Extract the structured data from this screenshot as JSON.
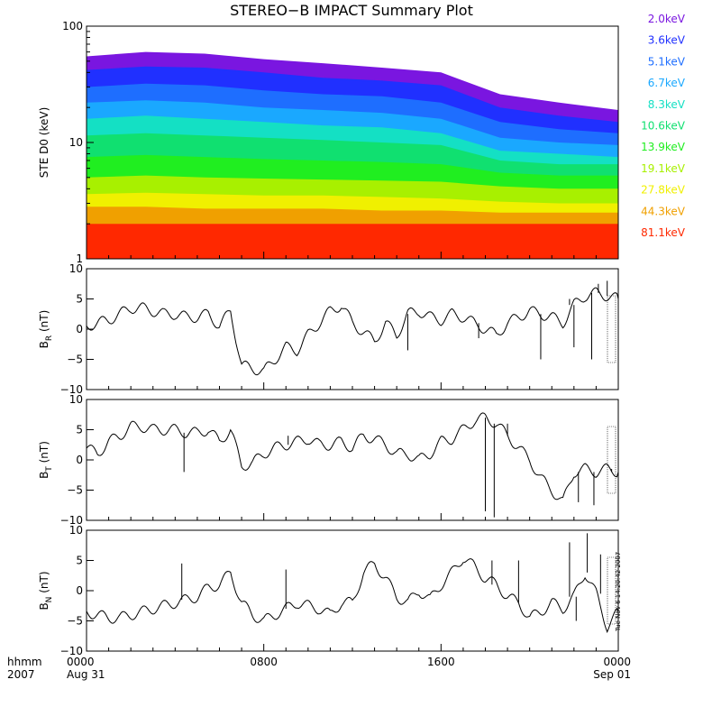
{
  "title": "STEREO−B IMPACT Summary Plot",
  "chart_data": [
    {
      "type": "area",
      "ylabel": "STE D0 (keV)",
      "yscale": "log",
      "ylim": [
        1,
        100
      ],
      "yticks": [
        "1",
        "10",
        "100"
      ],
      "x": [
        "0000",
        "0300",
        "0600",
        "0900",
        "1200",
        "1500",
        "1800",
        "1900",
        "2100",
        "2400"
      ],
      "series": [
        {
          "name": "2.0keV",
          "color": "#7a16e0",
          "values": [
            55,
            60,
            58,
            52,
            48,
            44,
            40,
            26,
            22,
            19
          ]
        },
        {
          "name": "3.6keV",
          "color": "#2030ff",
          "values": [
            42,
            45,
            44,
            40,
            36,
            34,
            31,
            20,
            17,
            15
          ]
        },
        {
          "name": "5.1keV",
          "color": "#1e6eff",
          "values": [
            30,
            32,
            31,
            28,
            26,
            25,
            22,
            15,
            13,
            12
          ]
        },
        {
          "name": "6.7keV",
          "color": "#1aa8ff",
          "values": [
            22,
            23,
            22,
            20,
            19,
            18,
            16,
            11,
            10,
            9.5
          ]
        },
        {
          "name": "8.3keV",
          "color": "#14e0c4",
          "values": [
            16,
            17,
            16,
            15,
            14,
            13.5,
            12,
            8.5,
            8,
            7.5
          ]
        },
        {
          "name": "10.6keV",
          "color": "#10e070",
          "values": [
            11.5,
            12,
            11.5,
            11,
            10.5,
            10,
            9.5,
            7,
            6.5,
            6.5
          ]
        },
        {
          "name": "13.9keV",
          "color": "#20ee20",
          "values": [
            7.5,
            7.8,
            7.5,
            7.2,
            7,
            6.8,
            6.5,
            5.5,
            5.2,
            5.2
          ]
        },
        {
          "name": "19.1keV",
          "color": "#a8f000",
          "values": [
            5,
            5.2,
            5,
            4.9,
            4.8,
            4.7,
            4.6,
            4.2,
            4,
            4
          ]
        },
        {
          "name": "27.8keV",
          "color": "#f0f000",
          "values": [
            3.6,
            3.7,
            3.6,
            3.5,
            3.5,
            3.4,
            3.3,
            3.1,
            3,
            3
          ]
        },
        {
          "name": "44.3keV",
          "color": "#f0a000",
          "values": [
            2.8,
            2.8,
            2.7,
            2.7,
            2.7,
            2.6,
            2.6,
            2.5,
            2.5,
            2.5
          ]
        },
        {
          "name": "81.1keV",
          "color": "#ff2800",
          "values": [
            2,
            2,
            2,
            2,
            2,
            2,
            2,
            2,
            2,
            2
          ]
        }
      ]
    },
    {
      "type": "line",
      "ylabel_main": "B",
      "ylabel_sub": "R",
      "ylabel_unit": "(nT)",
      "ylim": [
        -10,
        10
      ],
      "yticks": [
        "10",
        "5",
        "0",
        "−5",
        "−10"
      ],
      "x": [
        0,
        0.5,
        1,
        1.5,
        2,
        2.5,
        3,
        3.5,
        4,
        4.5,
        5,
        5.5,
        6,
        6.5,
        7,
        7.5,
        8,
        8.5,
        9,
        9.5,
        10,
        10.5,
        11,
        11.5,
        12,
        12.5,
        13,
        13.5,
        14,
        14.5,
        15,
        15.5,
        16,
        16.5,
        17,
        17.5,
        18,
        18.5,
        19,
        19.5,
        20,
        20.5,
        21,
        21.5,
        22,
        22.5,
        23,
        23.5,
        24
      ],
      "values": [
        0.5,
        1,
        1.5,
        2.5,
        3.5,
        3.5,
        3,
        2.5,
        2.5,
        2,
        2,
        2.5,
        0.5,
        3,
        -6,
        -6.5,
        -7,
        -5,
        -3,
        -3.5,
        -1,
        1,
        3,
        4,
        1,
        -0.5,
        -2,
        1,
        -1,
        2.5,
        3,
        2,
        1.5,
        2.5,
        2,
        1,
        0,
        -1,
        1,
        2,
        3,
        2.5,
        2,
        1,
        4,
        5.5,
        6,
        5.5,
        5
      ],
      "spikes": [
        {
          "x": 14.5,
          "y": -3.5
        },
        {
          "x": 17.7,
          "y": -1.5
        },
        {
          "x": 20.5,
          "y": -5
        },
        {
          "x": 21.8,
          "y": 5
        },
        {
          "x": 22.0,
          "y": -3
        },
        {
          "x": 22.8,
          "y": -5
        },
        {
          "x": 23.1,
          "y": 7.5
        },
        {
          "x": 23.5,
          "y": 8
        }
      ]
    },
    {
      "type": "line",
      "ylabel_main": "B",
      "ylabel_sub": "T",
      "ylabel_unit": "(nT)",
      "ylim": [
        -10,
        10
      ],
      "yticks": [
        "10",
        "5",
        "0",
        "−5",
        "−10"
      ],
      "x": [
        0,
        0.5,
        1,
        1.5,
        2,
        2.5,
        3,
        3.5,
        4,
        4.5,
        5,
        5.5,
        6,
        6.5,
        7,
        7.5,
        8,
        8.5,
        9,
        9.5,
        10,
        10.5,
        11,
        11.5,
        12,
        12.5,
        13,
        13.5,
        14,
        14.5,
        15,
        15.5,
        16,
        16.5,
        17,
        17.5,
        18,
        18.5,
        19,
        19.5,
        20,
        20.5,
        21,
        21.5,
        22,
        22.5,
        23,
        23.5,
        24
      ],
      "values": [
        2,
        1,
        3,
        4,
        5.5,
        5.5,
        5,
        5,
        5,
        4.5,
        4.5,
        5,
        3,
        5,
        -1,
        -0.5,
        1,
        2,
        2.5,
        3,
        3.5,
        2.5,
        2.5,
        3,
        2,
        4,
        3.5,
        2.5,
        1,
        1,
        0,
        1,
        3,
        3.5,
        5,
        6.5,
        7,
        6,
        4,
        2,
        0,
        -3,
        -5,
        -7,
        -2,
        -1.5,
        -2,
        -1.5,
        -2
      ],
      "spikes": [
        {
          "x": 4.4,
          "y": -2
        },
        {
          "x": 9.1,
          "y": 4
        },
        {
          "x": 18.0,
          "y": -8.5
        },
        {
          "x": 18.4,
          "y": -9.5
        },
        {
          "x": 19.0,
          "y": 6
        },
        {
          "x": 22.2,
          "y": -7
        },
        {
          "x": 22.9,
          "y": -7.5
        },
        {
          "x": 23.7,
          "y": -2
        }
      ]
    },
    {
      "type": "line",
      "ylabel_main": "B",
      "ylabel_sub": "N",
      "ylabel_unit": "(nT)",
      "ylim": [
        -10,
        10
      ],
      "yticks": [
        "10",
        "5",
        "0",
        "−5",
        "−10"
      ],
      "x": [
        0,
        0.5,
        1,
        1.5,
        2,
        2.5,
        3,
        3.5,
        4,
        4.5,
        5,
        5.5,
        6,
        6.5,
        7,
        7.5,
        8,
        8.5,
        9,
        9.5,
        10,
        10.5,
        11,
        11.5,
        12,
        12.5,
        13,
        13.5,
        14,
        14.5,
        15,
        15.5,
        16,
        16.5,
        17,
        17.5,
        18,
        18.5,
        19,
        19.5,
        20,
        20.5,
        21,
        21.5,
        22,
        22.5,
        23,
        23.5,
        24
      ],
      "values": [
        -3.5,
        -4,
        -4.5,
        -4.5,
        -4,
        -3.5,
        -3,
        -2.5,
        -2,
        -1.5,
        -1,
        0.5,
        1,
        3,
        -2,
        -4,
        -5,
        -4,
        -3,
        -2,
        -2.5,
        -3,
        -4,
        -2,
        -2,
        3,
        4.5,
        2,
        -1,
        -2,
        0,
        -1.5,
        1,
        3,
        5.5,
        4,
        2,
        1,
        -1,
        -2,
        -4.5,
        -3.5,
        -2,
        -3,
        -1,
        3,
        -0.5,
        -6,
        -3.5
      ],
      "spikes": [
        {
          "x": 4.3,
          "y": 4.5
        },
        {
          "x": 9.0,
          "y": 3.5
        },
        {
          "x": 18.3,
          "y": 5
        },
        {
          "x": 19.5,
          "y": 5
        },
        {
          "x": 21.8,
          "y": 8
        },
        {
          "x": 22.1,
          "y": -5
        },
        {
          "x": 22.6,
          "y": 9.5
        },
        {
          "x": 23.2,
          "y": 6
        }
      ]
    }
  ],
  "xaxis": {
    "row_label_top": "hhmm",
    "row_label_bottom": "2007",
    "ticks": [
      {
        "hour": 0,
        "label": "0000",
        "sublabel": "Aug 31"
      },
      {
        "hour": 8,
        "label": "0800",
        "sublabel": ""
      },
      {
        "hour": 16,
        "label": "1600",
        "sublabel": ""
      },
      {
        "hour": 24,
        "label": "0000",
        "sublabel": "Sep 01"
      }
    ]
  },
  "timestamp": "Tue Nov  6 14:20:42 2007"
}
